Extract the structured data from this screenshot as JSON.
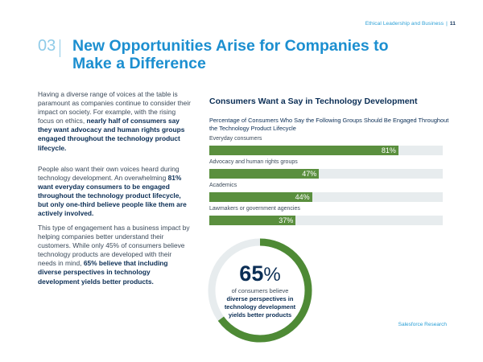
{
  "header": {
    "report": "Ethical Leadership and Business",
    "separator": "|",
    "page_number": "11"
  },
  "section": {
    "number": "03",
    "title": "New Opportunities Arise for Companies to Make a Difference"
  },
  "body": {
    "p1_normal": "Having a diverse range of voices at the table is paramount as companies continue to consider their impact on society. For example, with the rising focus on ethics, ",
    "p1_bold": "nearly half of consumers say they want advocacy and human rights groups engaged throughout the technology product lifecycle.",
    "p2_normal": "People also want their own voices heard during technology development. An overwhelming ",
    "p2_bold": "81% want everyday consumers to be engaged throughout the technology product lifecycle, but only one-third believe people like them are actively involved.",
    "p3_normal": "This type of engagement has a business impact by helping companies better understand their customers. While only 45% of consumers believe technology products are developed with their needs in mind, ",
    "p3_bold": "65% believe that including diverse perspectives in technology development yields better products."
  },
  "chart_data": {
    "type": "bar",
    "orientation": "horizontal",
    "title": "Consumers Want a Say in Technology Development",
    "subtitle": "Percentage of Consumers Who Say the Following Groups Should Be Engaged Throughout the Technology Product Lifecycle",
    "categories": [
      "Everyday consumers",
      "Advocacy and human rights groups",
      "Academics",
      "Lawmakers or government agencies"
    ],
    "values": [
      81,
      47,
      44,
      37
    ],
    "value_suffix": "%",
    "xlim": [
      0,
      100
    ],
    "bar_color": "#5a8f3e",
    "track_color": "#e7ecee"
  },
  "donut": {
    "value": 65,
    "label_value": "65",
    "label_suffix": "%",
    "caption_line1": "of consumers believe",
    "caption_line2": "diverse perspectives in technology development yields better products",
    "fill_color": "#4e8a35",
    "track_color": "#e7ecee"
  },
  "source": "Salesforce Research",
  "colors": {
    "accent_blue": "#1c8fd0",
    "navy": "#0b2e55",
    "light_blue": "#8fcbe8"
  }
}
